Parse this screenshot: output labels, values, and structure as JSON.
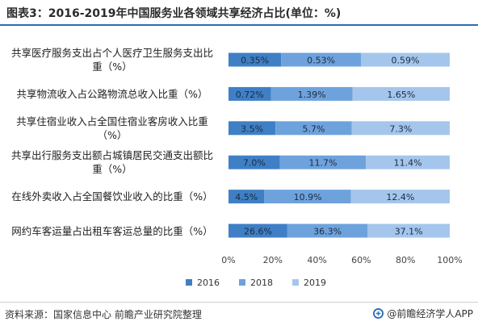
{
  "title": "图表3：2016-2019年中国服务业各领域共享经济占比(单位：%)",
  "chart_data": {
    "type": "bar",
    "orientation": "horizontal",
    "stacked": true,
    "normalized_percent": true,
    "categories": [
      "共享医疗服务支出占个人医疗卫生服务支出比重（%）",
      "共享物流收入占公路物流总收入比重（%）",
      "共享住宿业收入占全国住宿业客房收入比重（%）",
      "共享出行服务支出额占城镇居民交通支出额比重（%）",
      "在线外卖收入占全国餐饮业收入的比重（%）",
      "网约车客运量占出租车客运总量的比重（%）"
    ],
    "series": [
      {
        "name": "2016",
        "color": "#3f7fc5",
        "values": [
          0.35,
          0.72,
          3.5,
          7.0,
          4.5,
          26.6
        ],
        "labels": [
          "0.35%",
          "0.72%",
          "3.5%",
          "7.0%",
          "4.5%",
          "26.6%"
        ]
      },
      {
        "name": "2018",
        "color": "#6ea2dc",
        "values": [
          0.53,
          1.39,
          5.7,
          11.7,
          10.9,
          36.3
        ],
        "labels": [
          "0.53%",
          "1.39%",
          "5.7%",
          "11.7%",
          "10.9%",
          "36.3%"
        ]
      },
      {
        "name": "2019",
        "color": "#a4c6ec",
        "values": [
          0.59,
          1.65,
          7.3,
          11.4,
          12.4,
          37.1
        ],
        "labels": [
          "0.59%",
          "1.65%",
          "7.3%",
          "11.4%",
          "12.4%",
          "37.1%"
        ]
      }
    ],
    "x_ticks": [
      "0%",
      "20%",
      "40%",
      "60%",
      "80%",
      "100%"
    ],
    "xlim": [
      0,
      100
    ],
    "legend_position": "bottom",
    "grid": false
  },
  "footer": {
    "source": "资料来源：国家信息中心 前瞻产业研究院整理",
    "brand": "@前瞻经济学人APP"
  }
}
